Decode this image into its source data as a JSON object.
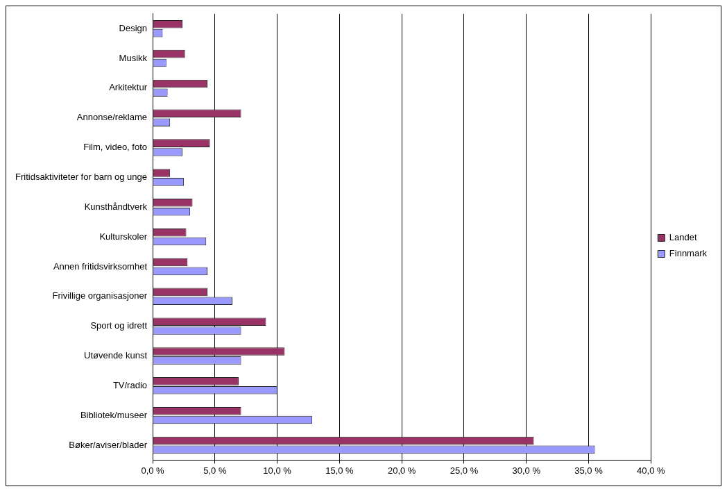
{
  "chart_data": {
    "type": "bar",
    "orientation": "horizontal",
    "categories": [
      "Design",
      "Musikk",
      "Arkitektur",
      "Annonse/reklame",
      "Film, video, foto",
      "Fritidsaktiviteter for barn og unge",
      "Kunsthåndtverk",
      "Kulturskoler",
      "Annen fritidsvirksomhet",
      "Frivillige organisasjoner",
      "Sport og idrett",
      "Utøvende kunst",
      "TV/radio",
      "Bibliotek/museer",
      "Bøker/aviser/blader"
    ],
    "series": [
      {
        "name": "Landet",
        "color": "#993366",
        "values": [
          2.4,
          2.6,
          4.4,
          7.1,
          4.6,
          1.4,
          3.2,
          2.7,
          2.8,
          4.4,
          9.1,
          10.6,
          6.9,
          7.1,
          30.6
        ]
      },
      {
        "name": "Finnmark",
        "color": "#9999ff",
        "values": [
          0.8,
          1.1,
          1.2,
          1.4,
          2.4,
          2.5,
          3.0,
          4.3,
          4.4,
          6.4,
          7.1,
          7.1,
          10.0,
          12.8,
          35.5
        ]
      }
    ],
    "xlim": [
      0,
      40
    ],
    "xticks": [
      {
        "value": 0,
        "label": "0,0 %"
      },
      {
        "value": 5,
        "label": "5,0 %"
      },
      {
        "value": 10,
        "label": "10,0 %"
      },
      {
        "value": 15,
        "label": "15,0 %"
      },
      {
        "value": 20,
        "label": "20,0 %"
      },
      {
        "value": 25,
        "label": "25,0 %"
      },
      {
        "value": 30,
        "label": "30,0 %"
      },
      {
        "value": 35,
        "label": "35,0 %"
      },
      {
        "value": 40,
        "label": "40,0 %"
      }
    ],
    "grid": "x",
    "legend": "right"
  }
}
